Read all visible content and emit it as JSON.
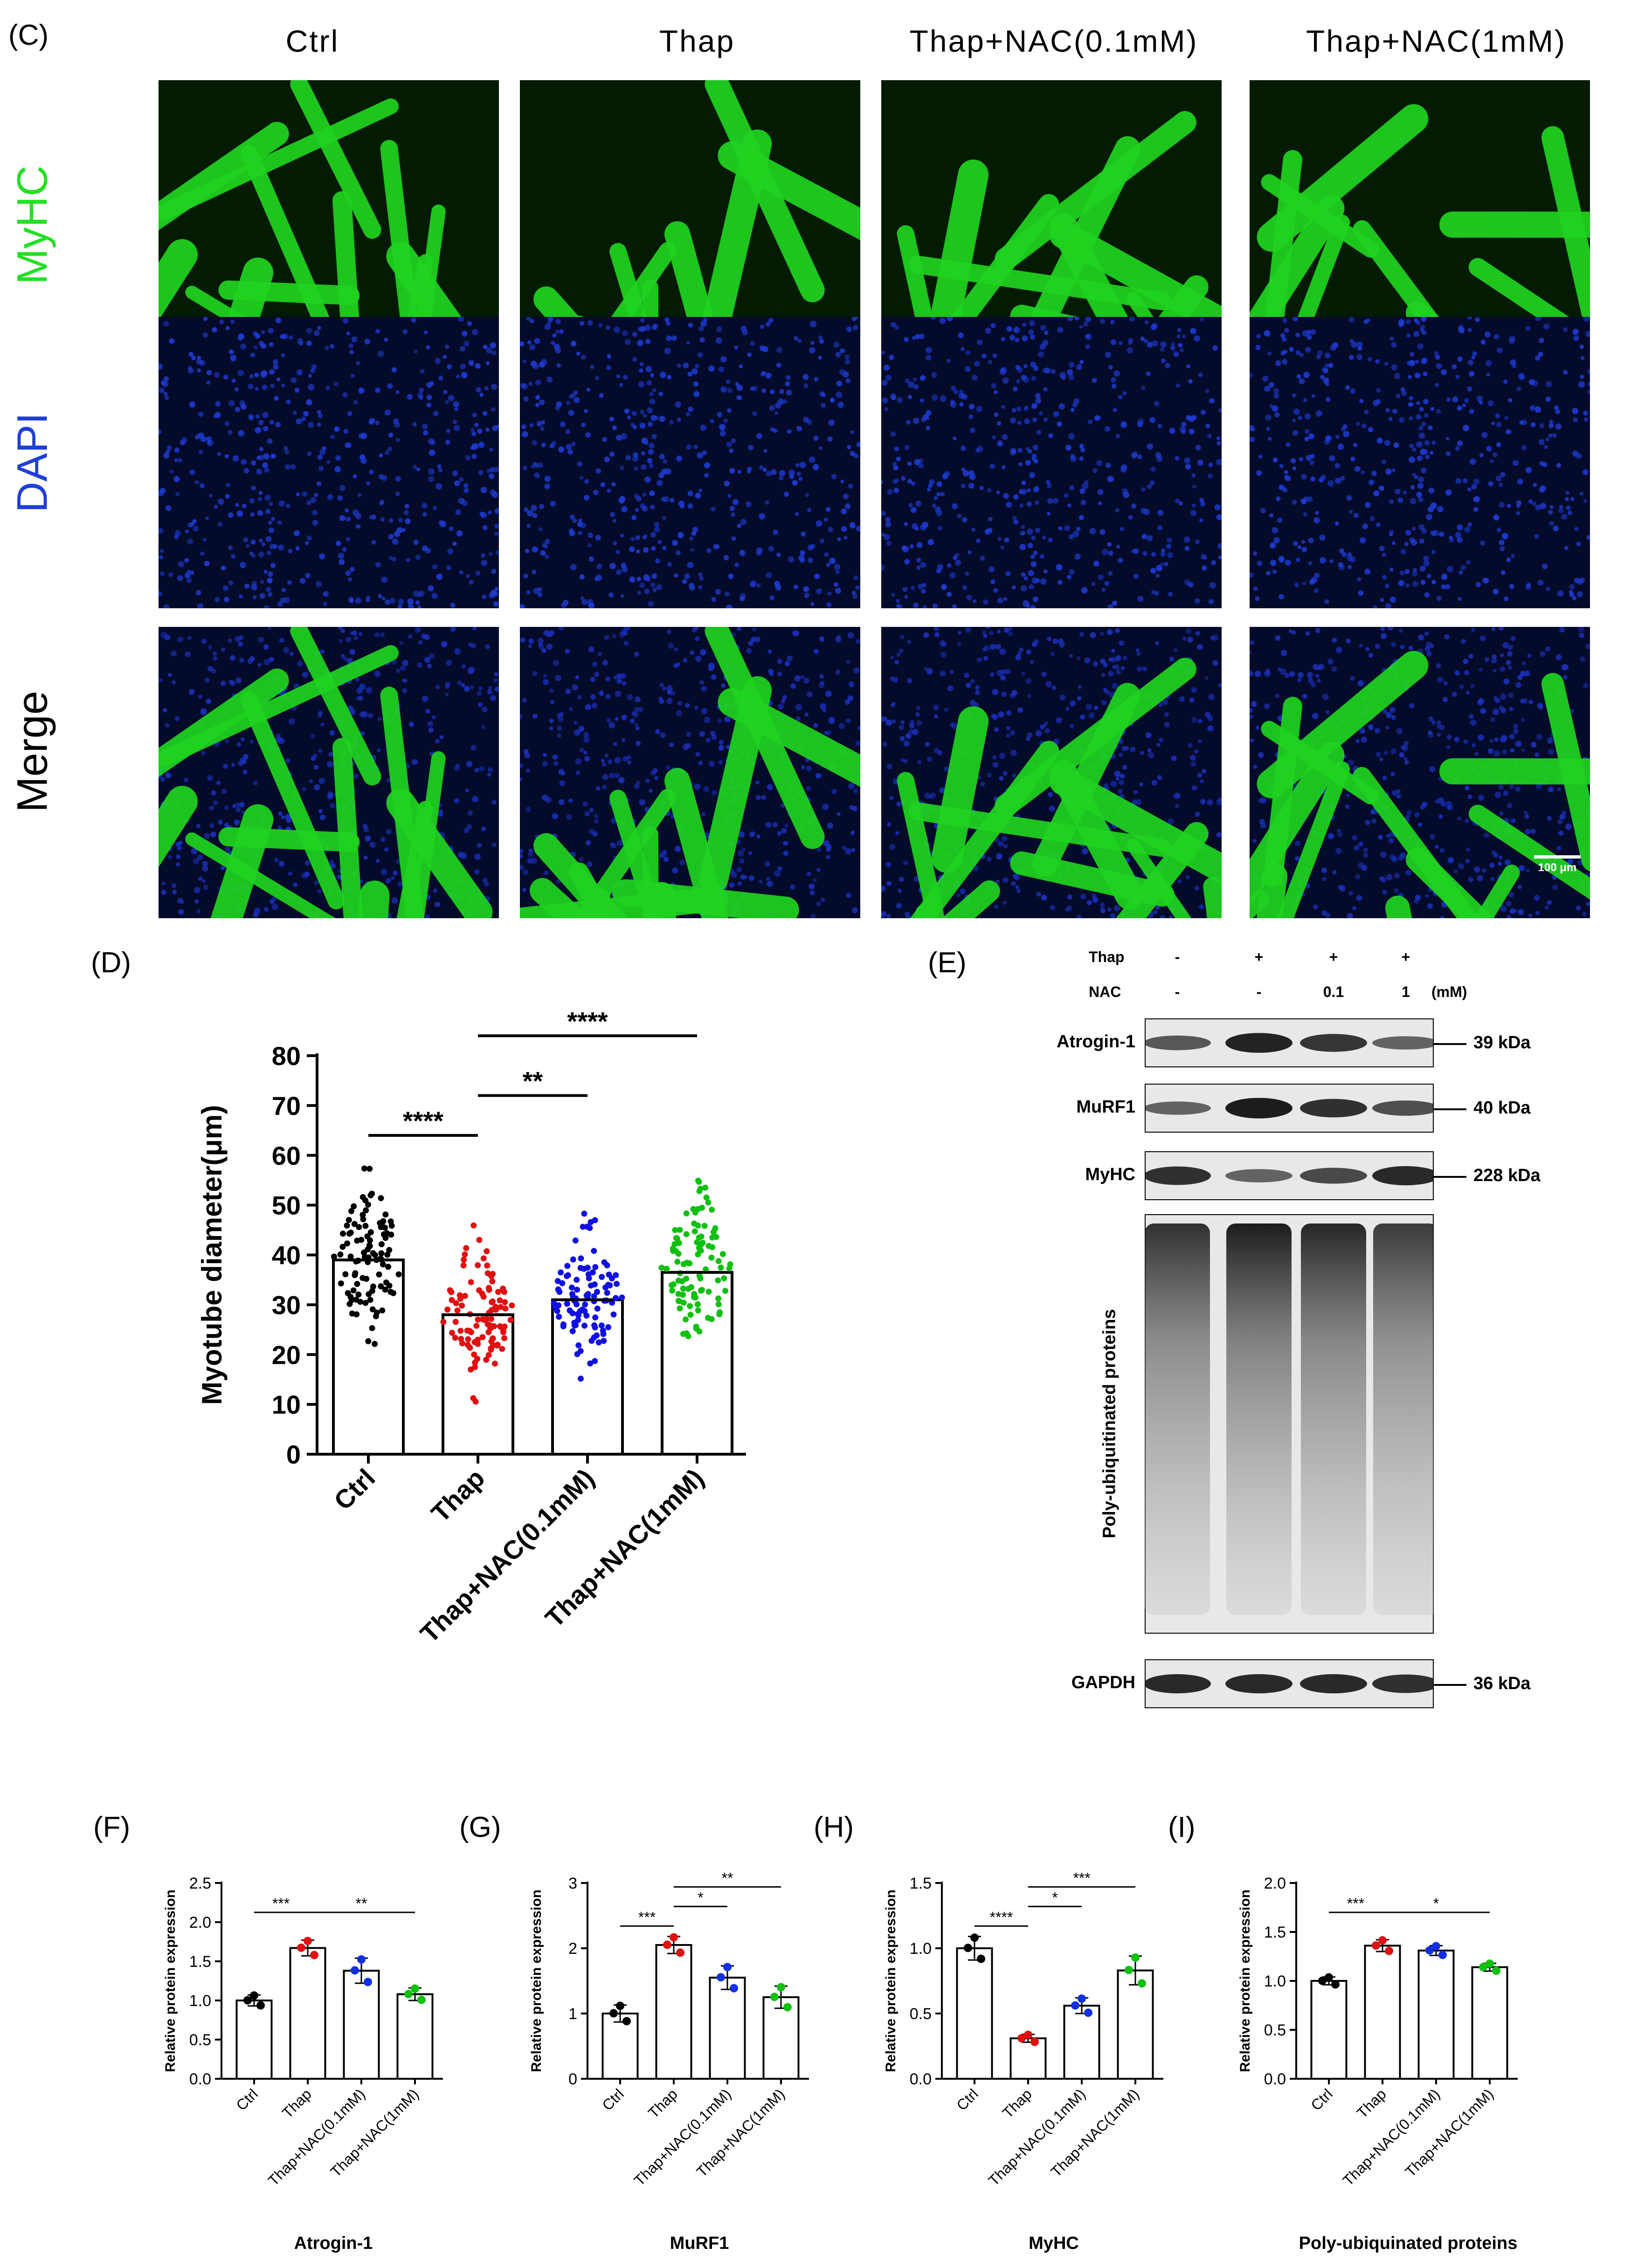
{
  "panel_c": {
    "letter": "(C)",
    "columns": [
      "Ctrl",
      "Thap",
      "Thap+NAC(0.1mM)",
      "Thap+NAC(1mM)"
    ],
    "rows": [
      "MyHC",
      "DAPI",
      "Merge"
    ],
    "row_colors": [
      "#22e022",
      "#1f3fd8",
      "#000000"
    ],
    "scale_bar": "100 μm"
  },
  "panel_d": {
    "letter": "(D)",
    "chart_data": {
      "type": "bar",
      "categories": [
        "Ctrl",
        "Thap",
        "Thap+NAC(0.1mM)",
        "Thap+NAC(1mM)"
      ],
      "values": [
        39,
        28,
        31,
        36.5
      ],
      "point_colors": [
        "#000000",
        "#e01010",
        "#1010e0",
        "#10c010"
      ],
      "ylabel": "Myotube diameter(μm)",
      "ylim": [
        0,
        80
      ],
      "yticks": [
        0,
        10,
        20,
        30,
        40,
        50,
        60,
        70,
        80
      ],
      "significance": [
        {
          "from": 0,
          "to": 1,
          "label": "****"
        },
        {
          "from": 1,
          "to": 2,
          "label": "**"
        },
        {
          "from": 1,
          "to": 3,
          "label": "****"
        }
      ]
    }
  },
  "panel_e": {
    "letter": "(E)",
    "header_rows": [
      {
        "label": "Thap",
        "values": [
          "-",
          "+",
          "+",
          "+"
        ],
        "unit": ""
      },
      {
        "label": "NAC",
        "values": [
          "-",
          "-",
          "0.1",
          "1"
        ],
        "unit": "(mM)"
      }
    ],
    "blots": [
      {
        "label": "Atrogin-1",
        "kda": "39 kDa"
      },
      {
        "label": "MuRF1",
        "kda": "40 kDa"
      },
      {
        "label": "MyHC",
        "kda": "228 kDa"
      },
      {
        "label": "Poly-ubiquitinated proteins",
        "kda": ""
      },
      {
        "label": "GAPDH",
        "kda": "36 kDa"
      }
    ]
  },
  "small_charts": [
    {
      "letter": "(F)",
      "chart_data": {
        "type": "bar",
        "categories": [
          "Ctrl",
          "Thap",
          "Thap+NAC(0.1mM)",
          "Thap+NAC(1mM)"
        ],
        "values": [
          1.0,
          1.67,
          1.38,
          1.08
        ],
        "errors": [
          0.07,
          0.1,
          0.16,
          0.08
        ],
        "ylabel": "Relative protein expression",
        "xlabel": "Atrogin-1",
        "ylim": [
          0,
          2.5
        ],
        "yticks": [
          "0.0",
          "0.5",
          "1.0",
          "1.5",
          "2.0",
          "2.5"
        ],
        "significance": [
          {
            "from": 0,
            "to": 1,
            "label": "***"
          },
          {
            "from": 1,
            "to": 3,
            "label": "**"
          }
        ]
      }
    },
    {
      "letter": "(G)",
      "chart_data": {
        "type": "bar",
        "categories": [
          "Ctrl",
          "Thap",
          "Thap+NAC(0.1mM)",
          "Thap+NAC(1mM)"
        ],
        "values": [
          1.0,
          2.05,
          1.55,
          1.25
        ],
        "errors": [
          0.13,
          0.13,
          0.18,
          0.17
        ],
        "ylabel": "Relative protein expression",
        "xlabel": "MuRF1",
        "ylim": [
          0,
          3
        ],
        "yticks": [
          "0",
          "1",
          "2",
          "3"
        ],
        "significance": [
          {
            "from": 0,
            "to": 1,
            "label": "***"
          },
          {
            "from": 1,
            "to": 2,
            "label": "*"
          },
          {
            "from": 1,
            "to": 3,
            "label": "**"
          }
        ]
      }
    },
    {
      "letter": "(H)",
      "chart_data": {
        "type": "bar",
        "categories": [
          "Ctrl",
          "Thap",
          "Thap+NAC(0.1mM)",
          "Thap+NAC(1mM)"
        ],
        "values": [
          1.0,
          0.31,
          0.56,
          0.83
        ],
        "errors": [
          0.09,
          0.03,
          0.06,
          0.11
        ],
        "ylabel": "Relative protein expression",
        "xlabel": "MyHC",
        "ylim": [
          0,
          1.5
        ],
        "yticks": [
          "0.0",
          "0.5",
          "1.0",
          "1.5"
        ],
        "significance": [
          {
            "from": 0,
            "to": 1,
            "label": "****"
          },
          {
            "from": 1,
            "to": 2,
            "label": "*"
          },
          {
            "from": 1,
            "to": 3,
            "label": "***"
          }
        ]
      }
    },
    {
      "letter": "(I)",
      "chart_data": {
        "type": "bar",
        "categories": [
          "Ctrl",
          "Thap",
          "Thap+NAC(0.1mM)",
          "Thap+NAC(1mM)"
        ],
        "values": [
          1.0,
          1.36,
          1.31,
          1.14
        ],
        "errors": [
          0.04,
          0.06,
          0.05,
          0.04
        ],
        "ylabel": "Relative protein expression",
        "xlabel": "Poly-ubiquinated proteins",
        "ylim": [
          0,
          2.0
        ],
        "yticks": [
          "0.0",
          "0.5",
          "1.0",
          "1.5",
          "2.0"
        ],
        "significance": [
          {
            "from": 0,
            "to": 1,
            "label": "***"
          },
          {
            "from": 1,
            "to": 3,
            "label": "*"
          }
        ]
      }
    }
  ]
}
